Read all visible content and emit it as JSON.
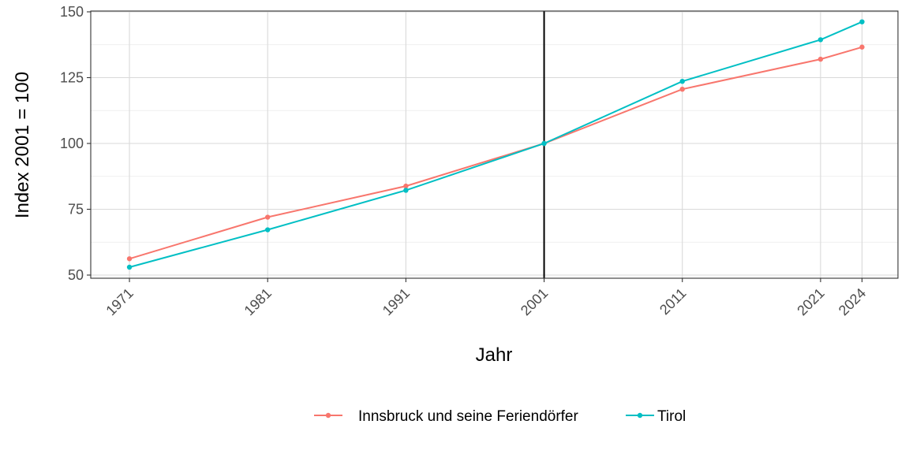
{
  "chart_data": {
    "type": "line",
    "xlabel": "Jahr",
    "ylabel": "Index 2001 = 100",
    "x": [
      1971,
      1981,
      1991,
      2001,
      2011,
      2021,
      2024
    ],
    "xticks": [
      "1971",
      "1981",
      "1991",
      "2001",
      "2011",
      "2021",
      "2024"
    ],
    "yticks": [
      50,
      75,
      100,
      125,
      150
    ],
    "xlim": [
      1968.2,
      2026.6
    ],
    "ylim": [
      48.8,
      150.3
    ],
    "grid": true,
    "reference_line_x": 2001,
    "legend_position": "bottom",
    "series": [
      {
        "name": "Innsbruck und seine Feriendörfer",
        "color": "#F8766D",
        "values": [
          56.2,
          72.0,
          83.8,
          100.0,
          120.6,
          132.0,
          136.6
        ]
      },
      {
        "name": "Tirol",
        "color": "#00BFC4",
        "values": [
          53.0,
          67.2,
          82.2,
          100.0,
          123.6,
          139.4,
          146.2
        ]
      }
    ]
  }
}
